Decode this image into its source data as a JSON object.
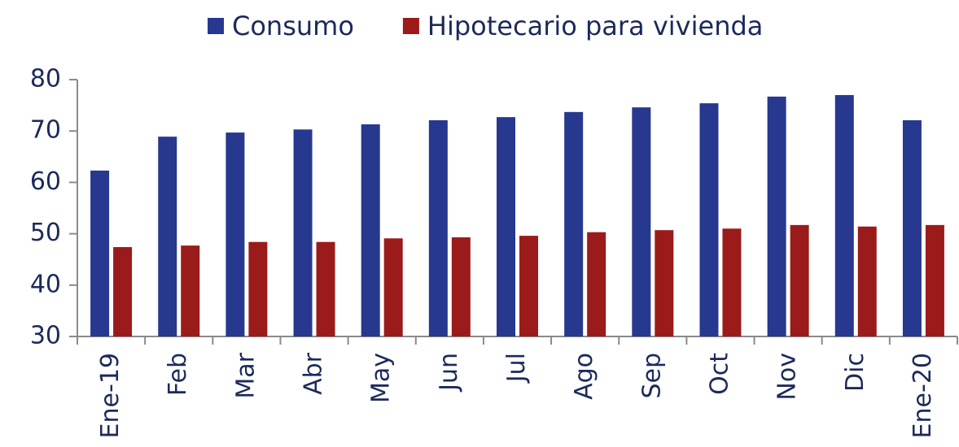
{
  "chart_data": {
    "type": "bar",
    "categories": [
      "Ene-19",
      "Feb",
      "Mar",
      "Abr",
      "May",
      "Jun",
      "Jul",
      "Ago",
      "Sep",
      "Oct",
      "Nov",
      "Dic",
      "Ene-20"
    ],
    "series": [
      {
        "name": "Consumo",
        "color": "#27388f",
        "values": [
          62.3,
          68.9,
          69.7,
          70.3,
          71.3,
          72.1,
          72.7,
          73.7,
          74.6,
          75.4,
          76.7,
          77.0,
          72.1
        ]
      },
      {
        "name": "Hipotecario para vivienda",
        "color": "#9b1b1b",
        "values": [
          47.4,
          47.7,
          48.4,
          48.4,
          49.1,
          49.3,
          49.6,
          50.3,
          50.7,
          51.0,
          51.7,
          51.4,
          51.7
        ]
      }
    ],
    "ylim": [
      30,
      80
    ],
    "yticks": [
      30,
      40,
      50,
      60,
      70,
      80
    ],
    "grid": false,
    "legend": "top"
  }
}
